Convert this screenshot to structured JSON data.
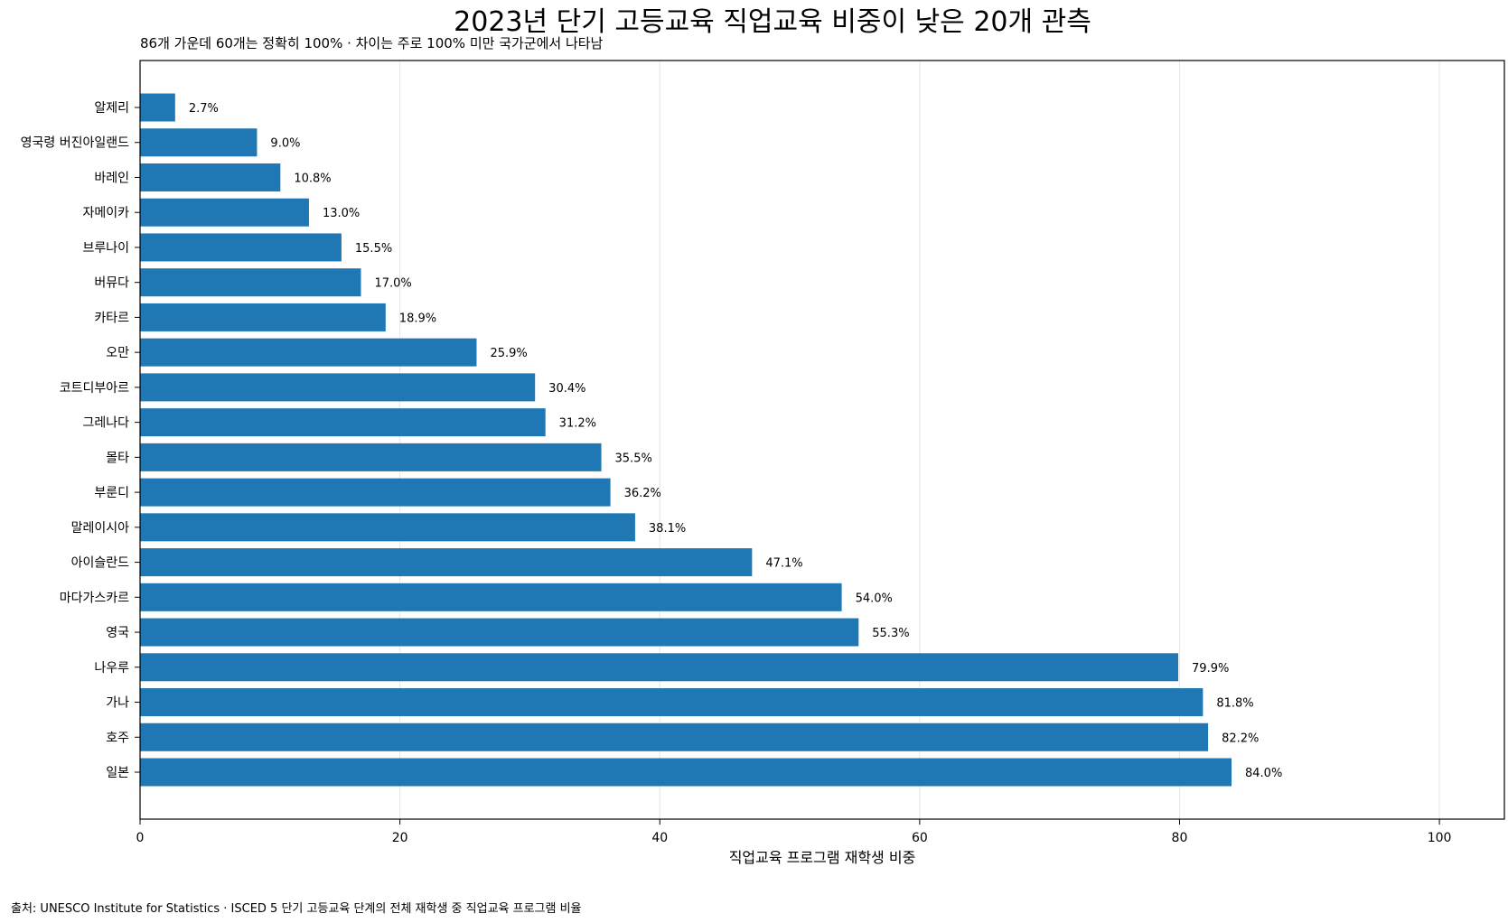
{
  "chart_data": {
    "type": "bar",
    "orientation": "horizontal",
    "title": "2023년 단기 고등교육 직업교육 비중이 낮은 20개 관측",
    "subtitle": "86개 가운데 60개는 정확히 100% · 차이는 주로 100% 미만 국가군에서 나타남",
    "xlabel": "직업교육 프로그램 재학생 비중",
    "ylabel": "",
    "xlim": [
      0,
      105
    ],
    "xticks": [
      0,
      20,
      40,
      60,
      80,
      100
    ],
    "grid": "vertical",
    "categories": [
      "알제리",
      "영국령 버진아일랜드",
      "바레인",
      "자메이카",
      "브루나이",
      "버뮤다",
      "카타르",
      "오만",
      "코트디부아르",
      "그레나다",
      "몰타",
      "부룬디",
      "말레이시아",
      "아이슬란드",
      "마다가스카르",
      "영국",
      "나우루",
      "가나",
      "호주",
      "일본"
    ],
    "values": [
      2.7,
      9.0,
      10.8,
      13.0,
      15.5,
      17.0,
      18.9,
      25.9,
      30.4,
      31.2,
      35.5,
      36.2,
      38.1,
      47.1,
      54.0,
      55.3,
      79.9,
      81.8,
      82.2,
      84.0
    ],
    "value_labels": [
      "2.7%",
      "9.0%",
      "10.8%",
      "13.0%",
      "15.5%",
      "17.0%",
      "18.9%",
      "25.9%",
      "30.4%",
      "31.2%",
      "35.5%",
      "36.2%",
      "38.1%",
      "47.1%",
      "54.0%",
      "55.3%",
      "79.9%",
      "81.8%",
      "82.2%",
      "84.0%"
    ],
    "bar_color": "#1f77b4",
    "source": "출처: UNESCO Institute for Statistics · ISCED 5 단기 고등교육 단계의 전체 재학생 중 직업교육 프로그램 비율"
  }
}
